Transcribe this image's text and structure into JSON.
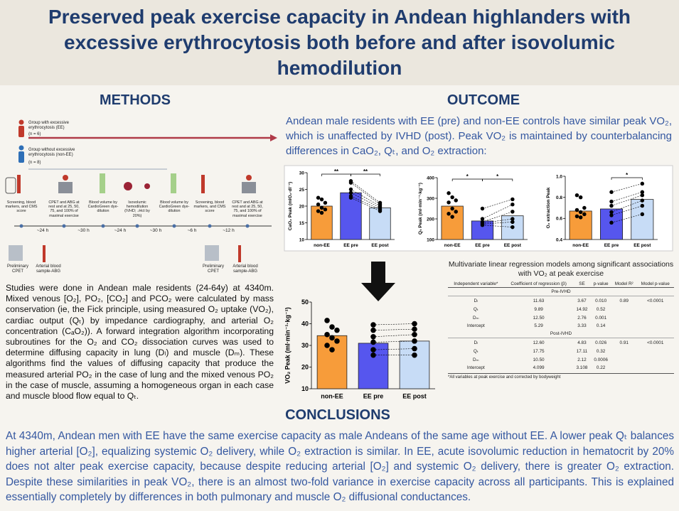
{
  "header": {
    "title": "Preserved peak exercise capacity in Andean highlanders with excessive erythrocytosis both before and after isovolumic hemodilution"
  },
  "methods": {
    "heading": "METHODS",
    "diagram": {
      "groups": [
        "Group with excessive erythrocytosis (EE)",
        "(n = 6)",
        "Group without excessive erythrocytosis (non-EE)",
        "(n = 8)"
      ],
      "steps": [
        "Screening, blood markers, and CMS score",
        "CPET and ABG at rest and at 25, 50, 75, and 100% of maximal exercise",
        "Blood volume by CardioGreen dye-dilution",
        "Isovolumic hemodilution (IVHD; ↓Hct by 20%)",
        "Blood volume by CardioGreen dye-dilution",
        "Screening, blood markers, and CMS score",
        "CPET and ABG at rest and at 25, 50, 75, and 100% of maximal exercise"
      ],
      "times": [
        "~24 h",
        "~30 h",
        "~24 h",
        "~30 h",
        "~6 h",
        "~12 h"
      ],
      "bottom": [
        "Preliminary CPET",
        "Arterial blood sample-ABG",
        "Preliminary CPET",
        "Arterial blood sample-ABG"
      ]
    },
    "text": "Studies were done in Andean male residents (24-64y) at 4340m. Mixed venous [O₂], PO₂, [CO₂] and PCO₂ were calculated by mass conservation (ie, the Fick principle, using measured O₂ uptake (VO₂), cardiac output (Qₜ) by impedance cardiography, and arterial O₂ concentration (CₐO₂)). A forward integration algorithm incorporating subroutines for the O₂ and CO₂ dissociation curves was used to determine diffusing capacity in lung (Dₗ) and muscle (Dₘ). These algorithms find the values of diffusing capacity that produce the measured arterial PO₂ in the case of lung and the mixed venous PO₂ in the case of muscle, assuming a homogeneous organ in each case and muscle blood flow equal to Qₜ."
  },
  "outcome": {
    "heading": "OUTCOME",
    "text": "Andean male residents with EE (pre) and non-EE controls have similar peak VO₂, which is unaffected by IVHD (post). Peak VO₂ is maintained by counterbalancing differences in CaO₂, Qₜ, and O₂ extraction:"
  },
  "chart_data": [
    {
      "type": "bar",
      "y_label": "CaO₂ Peak (mlO₂·dl⁻¹)",
      "categories": [
        "non-EE",
        "EE pre",
        "EE post"
      ],
      "values": [
        20,
        24,
        19.5
      ],
      "colors": [
        "#f79c3a",
        "#5656ee",
        "#c7dcf6"
      ],
      "points": [
        [
          22.5,
          22,
          21,
          20.5,
          19.5,
          19,
          18.5,
          18
        ],
        [
          27.5,
          27,
          25,
          24,
          23,
          22.5
        ],
        [
          21,
          20.5,
          20,
          19.5,
          19,
          18.5
        ]
      ],
      "paired": true,
      "ylim": [
        10,
        30
      ],
      "yticks": [
        10,
        15,
        20,
        25,
        30
      ],
      "annotations": [
        {
          "text": "**",
          "from": 0,
          "to": 1
        },
        {
          "text": "**",
          "from": 1,
          "to": 2
        }
      ]
    },
    {
      "type": "bar",
      "y_label": "Qₜ Peak (ml·min⁻¹·kg⁻¹)",
      "categories": [
        "non-EE",
        "EE pre",
        "EE post"
      ],
      "values": [
        262,
        190,
        215
      ],
      "colors": [
        "#f79c3a",
        "#5656ee",
        "#c7dcf6"
      ],
      "points": [
        [
          325,
          305,
          290,
          280,
          250,
          235,
          225,
          210
        ],
        [
          250,
          200,
          185,
          180,
          175,
          170
        ],
        [
          295,
          270,
          235,
          200,
          185,
          160
        ]
      ],
      "paired": true,
      "ylim": [
        100,
        400
      ],
      "yticks": [
        100,
        200,
        300,
        400
      ],
      "annotations": [
        {
          "text": "*",
          "from": 0,
          "to": 1
        },
        {
          "text": "*",
          "from": 1,
          "to": 2
        }
      ]
    },
    {
      "type": "bar",
      "y_label": "O₂ extraction Peak",
      "categories": [
        "non-EE",
        "EE pre",
        "EE post"
      ],
      "values": [
        0.67,
        0.69,
        0.78
      ],
      "colors": [
        "#f79c3a",
        "#5656ee",
        "#c7dcf6"
      ],
      "points": [
        [
          0.82,
          0.8,
          0.7,
          0.68,
          0.66,
          0.64,
          0.62,
          0.61
        ],
        [
          0.85,
          0.76,
          0.72,
          0.66,
          0.63,
          0.56
        ],
        [
          0.93,
          0.85,
          0.82,
          0.77,
          0.72,
          0.64
        ]
      ],
      "paired": true,
      "ylim": [
        0.4,
        1
      ],
      "yticks": [
        0.4,
        0.6,
        0.8,
        {
          "value": 1,
          "label": "1.0"
        }
      ],
      "annotations": [
        {
          "text": "*",
          "from": 1,
          "to": 2
        }
      ]
    },
    {
      "type": "bar",
      "y_label": "VO₂ Peak (ml·min⁻¹·kg⁻¹)",
      "categories": [
        "non-EE",
        "EE pre",
        "EE post"
      ],
      "values": [
        34.5,
        31,
        32
      ],
      "colors": [
        "#f79c3a",
        "#5656ee",
        "#c7dcf6"
      ],
      "points": [
        [
          41.5,
          38.5,
          37,
          35,
          33.5,
          32,
          30,
          28
        ],
        [
          39.5,
          37,
          34,
          31.5,
          28,
          25.5
        ],
        [
          40,
          37.5,
          35,
          32,
          28.5,
          25.5
        ]
      ],
      "paired": true,
      "ylim": [
        10,
        50
      ],
      "yticks": [
        10,
        20,
        30,
        40,
        50
      ],
      "annotations": []
    }
  ],
  "table": {
    "title": "Multivariate linear regression models among significant associations with VO₂ at peak exercise",
    "headers": [
      "Independent variable*",
      "Coefficient of regression (β)",
      "SE",
      "p-value",
      "Model R²",
      "Model p-value"
    ],
    "sections": [
      {
        "name": "Pre-IVHD",
        "rows": [
          [
            "Dₗ",
            "11.63",
            "3.67",
            "0.010",
            "0.89",
            "<0.0001"
          ],
          [
            "Qₜ",
            "9.89",
            "14.92",
            "0.52"
          ],
          [
            "Dₘ",
            "12.50",
            "2.76",
            "0.001"
          ],
          [
            "Intercept",
            "5.29",
            "3.33",
            "0.14"
          ]
        ]
      },
      {
        "name": "Post-IVHD",
        "rows": [
          [
            "Dₗ",
            "12.60",
            "4.83",
            "0.026",
            "0.91",
            "<0.0001"
          ],
          [
            "Qₜ",
            "17.75",
            "17.11",
            "0.32"
          ],
          [
            "Dₘ",
            "10.50",
            "2.12",
            "0.0006"
          ],
          [
            "Intercept",
            "4.099",
            "3.108",
            "0.22"
          ]
        ]
      }
    ],
    "footnote": "*All variables at peak exercise and corrected by bodyweight"
  },
  "conclusions": {
    "heading": "CONCLUSIONS",
    "text": "At 4340m, Andean men with EE have the same exercise capacity as male Andeans of the same age without EE. A lower peak Qₜ balances higher arterial [O₂], equalizing systemic O₂ delivery, while O₂ extraction is similar. In EE, acute isovolumic reduction in hematocrit by 20% does not alter peak exercise capacity, because despite reducing arterial [O₂] and systemic O₂ delivery, there is greater O₂ extraction. Despite these similarities in peak VO₂, there is an almost two-fold variance in exercise capacity across all participants. This is explained essentially completely by differences in both pulmonary and muscle O₂ diffusional conductances."
  }
}
